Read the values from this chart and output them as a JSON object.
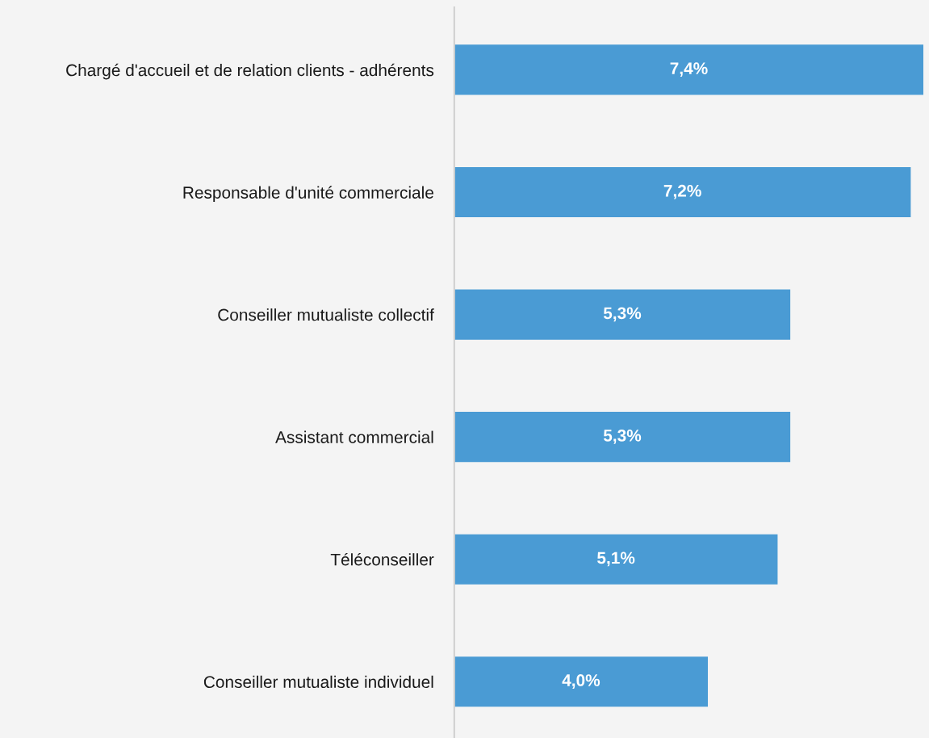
{
  "chart_data": {
    "type": "bar",
    "orientation": "horizontal",
    "categories": [
      "Chargé d'accueil et de relation clients - adhérents",
      "Responsable d'unité commerciale",
      "Conseiller mutualiste collectif",
      "Assistant commercial",
      "Téléconseiller",
      "Conseiller mutualiste individuel"
    ],
    "values": [
      7.4,
      7.2,
      5.3,
      5.3,
      5.1,
      4.0
    ],
    "value_labels": [
      "7,4%",
      "7,2%",
      "5,3%",
      "5,3%",
      "5,1%",
      "4,0%"
    ],
    "color": "#4a9bd4",
    "grid": false,
    "legend": false
  }
}
